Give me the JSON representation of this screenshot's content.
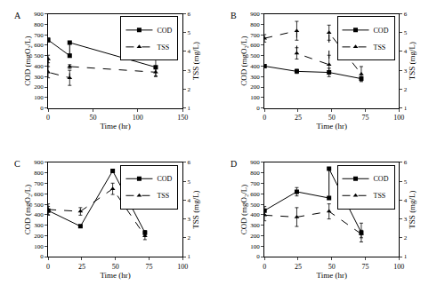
{
  "chart_data": [
    {
      "type": "line",
      "title": "A",
      "x_label": "Time (hr)",
      "y_label": "COD (mgO₂/L)",
      "y2_label": "TSS (mg/L)",
      "xlim": [
        0,
        150
      ],
      "xticks": [
        0,
        50,
        100,
        150
      ],
      "ylim": [
        0,
        900
      ],
      "yticks": [
        0,
        100,
        200,
        300,
        400,
        500,
        600,
        700,
        800,
        900
      ],
      "y2lim": [
        1,
        6
      ],
      "y2ticks": [
        1,
        2,
        3,
        4,
        5,
        6
      ],
      "legend": "upper right",
      "series": [
        {
          "name": "COD",
          "color": "#000000",
          "marker": "square",
          "line_style": "solid",
          "x": [
            0,
            24,
            24,
            120
          ],
          "values": [
            650,
            500,
            625,
            390
          ],
          "errors": [
            20,
            15,
            10,
            90
          ]
        },
        {
          "name": "TSS",
          "color": "#000000",
          "marker": "triangle-up",
          "line_style": "dashed",
          "axis": "y2",
          "x": [
            0,
            0,
            24,
            24,
            120
          ],
          "values": [
            3.6,
            2.9,
            2.6,
            3.2,
            2.9
          ],
          "errors": [
            0.2,
            0.3,
            0.4,
            0.1,
            0.2
          ]
        }
      ]
    },
    {
      "type": "line",
      "title": "B",
      "x_label": "Time (hr)",
      "y_label": "COD (mgO₂/L)",
      "y2_label": "TSS (mg/L)",
      "xlim": [
        0,
        100
      ],
      "xticks": [
        0,
        25,
        50,
        75,
        100
      ],
      "ylim": [
        0,
        900
      ],
      "yticks": [
        0,
        100,
        200,
        300,
        400,
        500,
        600,
        700,
        800,
        900
      ],
      "y2lim": [
        1,
        6
      ],
      "y2ticks": [
        1,
        2,
        3,
        4,
        5,
        6
      ],
      "legend": "upper right",
      "series": [
        {
          "name": "COD",
          "color": "#000000",
          "marker": "square",
          "line_style": "solid",
          "x": [
            0,
            24,
            48,
            72
          ],
          "values": [
            400,
            350,
            340,
            280
          ],
          "errors": [
            10,
            20,
            40,
            20
          ]
        },
        {
          "name": "TSS",
          "color": "#000000",
          "marker": "triangle-up",
          "line_style": "dashed",
          "axis": "y2",
          "x": [
            0,
            24,
            24,
            48,
            48,
            72
          ],
          "values": [
            4.7,
            5.1,
            3.9,
            3.3,
            5.0,
            2.8
          ],
          "errors": [
            0.2,
            0.5,
            0.3,
            0.5,
            0.4,
            0.4
          ]
        }
      ]
    },
    {
      "type": "line",
      "title": "C",
      "x_label": "Time (hr)",
      "y_label": "COD (mgO₂/L)",
      "y2_label": "TSS (mg/L)",
      "xlim": [
        0,
        100
      ],
      "xticks": [
        0,
        25,
        50,
        75,
        100
      ],
      "ylim": [
        0,
        900
      ],
      "yticks": [
        0,
        100,
        200,
        300,
        400,
        500,
        600,
        700,
        800,
        900
      ],
      "y2lim": [
        1,
        6
      ],
      "y2ticks": [
        1,
        2,
        3,
        4,
        5,
        6
      ],
      "legend": "upper right",
      "series": [
        {
          "name": "COD",
          "color": "#000000",
          "marker": "square",
          "line_style": "solid",
          "x": [
            0,
            24,
            48,
            72
          ],
          "values": [
            440,
            290,
            820,
            230
          ],
          "errors": [
            40,
            10,
            10,
            20
          ]
        },
        {
          "name": "TSS",
          "color": "#000000",
          "marker": "triangle-up",
          "line_style": "dashed",
          "axis": "y2",
          "x": [
            0,
            24,
            48,
            72
          ],
          "values": [
            3.5,
            3.4,
            4.6,
            2.1
          ],
          "errors": [
            0.3,
            0.2,
            0.3,
            0.2
          ]
        }
      ]
    },
    {
      "type": "line",
      "title": "D",
      "x_label": "Time (hr)",
      "y_label": "COD (mgO₂/L)",
      "y2_label": "TSS (mg/L)",
      "xlim": [
        0,
        100
      ],
      "xticks": [
        0,
        25,
        50,
        75,
        100
      ],
      "ylim": [
        0,
        900
      ],
      "yticks": [
        0,
        100,
        200,
        300,
        400,
        500,
        600,
        700,
        800,
        900
      ],
      "y2lim": [
        1,
        6
      ],
      "y2ticks": [
        1,
        2,
        3,
        4,
        5,
        6
      ],
      "legend": "upper right",
      "series": [
        {
          "name": "COD",
          "color": "#000000",
          "marker": "square",
          "line_style": "solid",
          "x": [
            0,
            24,
            48,
            48,
            72
          ],
          "values": [
            440,
            620,
            560,
            840,
            230
          ],
          "errors": [
            40,
            40,
            10,
            10,
            90
          ]
        },
        {
          "name": "TSS",
          "color": "#000000",
          "marker": "triangle-up",
          "line_style": "dashed",
          "axis": "y2",
          "x": [
            0,
            24,
            48,
            72
          ],
          "values": [
            3.2,
            3.1,
            3.4,
            2.2
          ],
          "errors": [
            0.3,
            0.5,
            0.4,
            0.2
          ]
        }
      ]
    }
  ]
}
